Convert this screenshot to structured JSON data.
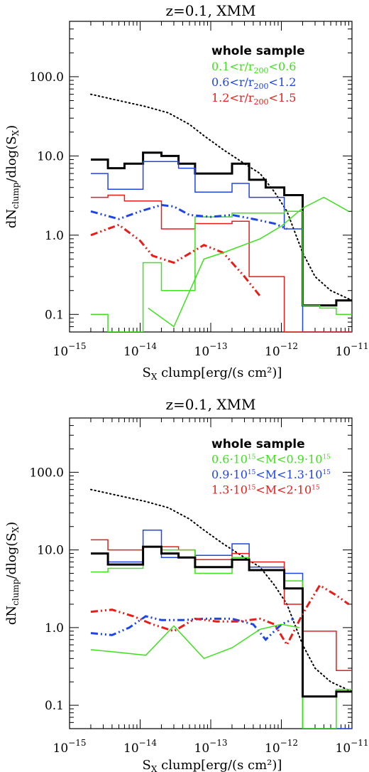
{
  "chart_data": [
    {
      "type": "line",
      "title": "z=0.1, XMM",
      "xlabel": "S_X clump[erg/(s cm²)]",
      "ylabel": "dN_clump/dlog(S_X)",
      "xscale": "log",
      "yscale": "log",
      "xlim": [
        1e-15,
        1e-11
      ],
      "ylim": [
        0.06,
        500
      ],
      "x_ticks": [
        {
          "base": "10",
          "exp": "−15"
        },
        {
          "base": "10",
          "exp": "−14"
        },
        {
          "base": "10",
          "exp": "−13"
        },
        {
          "base": "10",
          "exp": "−12"
        },
        {
          "base": "10",
          "exp": "−11"
        }
      ],
      "y_ticks": [
        {
          "value": 0.1,
          "label": "0.1"
        },
        {
          "value": 1,
          "label": "1.0"
        },
        {
          "value": 10,
          "label": "10.0"
        },
        {
          "value": 100,
          "label": "100.0"
        }
      ],
      "legend_position": "top-right",
      "legend": [
        {
          "label": "whole sample",
          "color": "#000000"
        },
        {
          "label": "0.1<r/r200<0.6",
          "color": "#40e020"
        },
        {
          "label": "0.6<r/r200<1.2",
          "color": "#1f45e6"
        },
        {
          "label": "1.2<r/r200<1.5",
          "color": "#e61d19"
        }
      ],
      "series": [
        {
          "style": "dotted",
          "color": "#000000",
          "x": [
            2e-15,
            5e-15,
            1.2e-14,
            2.5e-14,
            5e-14,
            8e-14,
            1.5e-13,
            3e-13,
            5e-13,
            8e-13,
            1.2e-12,
            2e-12,
            3e-12,
            5e-12,
            1e-11
          ],
          "y": [
            60,
            50,
            42,
            35,
            25,
            18,
            12,
            8,
            6,
            3.5,
            2,
            0.6,
            0.3,
            0.2,
            0.15
          ]
        },
        {
          "style": "step",
          "color": "#000000",
          "width": 3,
          "edges": [
            2e-15,
            3.5e-15,
            6e-15,
            1.1e-14,
            2e-14,
            3.5e-14,
            6e-14,
            1.1e-13,
            2e-13,
            3.5e-13,
            6e-13,
            1.1e-12,
            2e-12,
            3.5e-12,
            6e-12,
            1e-11
          ],
          "y": [
            9,
            7,
            8,
            11,
            10,
            8,
            6,
            6,
            8,
            5,
            4,
            3.2,
            0.13,
            0.13,
            0.15
          ]
        },
        {
          "style": "step",
          "color": "#1f45e6",
          "width": 1.5,
          "edges": [
            2e-15,
            3.5e-15,
            6e-15,
            1.1e-14,
            2e-14,
            3.5e-14,
            6e-14,
            1.1e-13,
            2e-13,
            3.5e-13,
            6e-13,
            1.1e-12,
            2e-12,
            3.5e-12,
            6e-12,
            1e-11
          ],
          "y": [
            6,
            3.8,
            3.8,
            8.5,
            8.5,
            7,
            3.5,
            3.5,
            4.5,
            3,
            3,
            1.2,
            0.06,
            0.06,
            0.06
          ]
        },
        {
          "style": "step",
          "color": "#e61d19",
          "width": 1.5,
          "edges": [
            2e-15,
            3.5e-15,
            6e-15,
            1.1e-14,
            2e-14,
            3.5e-14,
            6e-14,
            1.1e-13,
            2e-13,
            3.5e-13,
            6e-13,
            1.1e-12,
            2e-12,
            3.5e-12,
            6e-12,
            1e-11
          ],
          "y": [
            3,
            3.2,
            2.7,
            2.7,
            1.2,
            1.2,
            1.4,
            1.4,
            1.5,
            0.3,
            0.3,
            0.06,
            0.06,
            0.06,
            0.06
          ]
        },
        {
          "style": "step",
          "color": "#40e020",
          "width": 1.5,
          "edges": [
            2e-15,
            3.5e-15,
            6e-15,
            1.1e-14,
            2e-14,
            3.5e-14,
            6e-14,
            1.1e-13,
            2e-13,
            3.5e-13,
            6e-13,
            1.1e-12,
            2e-12,
            3.5e-12,
            6e-12,
            1e-11
          ],
          "y": [
            0.1,
            0.06,
            0.06,
            0.45,
            0.2,
            0.2,
            1.7,
            1.7,
            1.9,
            1.9,
            1.9,
            2,
            0.13,
            0.12,
            0.1
          ]
        },
        {
          "style": "dashdot",
          "color": "#1f45e6",
          "width": 3,
          "x": [
            2e-15,
            5e-15,
            1e-14,
            2e-14,
            3e-14,
            5e-14,
            1e-13,
            2e-13,
            4e-13,
            8e-13,
            1.2e-12
          ],
          "y": [
            2,
            1.6,
            2,
            2.4,
            2.3,
            1.8,
            1.7,
            1.8,
            1.6,
            1.4,
            1.2
          ]
        },
        {
          "style": "dashdot",
          "color": "#e61d19",
          "width": 3,
          "x": [
            2e-15,
            5e-15,
            1e-14,
            1.5e-14,
            3e-14,
            8e-14,
            1.5e-13,
            3e-13,
            5e-13
          ],
          "y": [
            1,
            1.35,
            0.85,
            0.55,
            0.45,
            0.75,
            0.6,
            0.3,
            0.17
          ]
        },
        {
          "style": "solid",
          "color": "#40e020",
          "width": 1.5,
          "x": [
            1.3e-14,
            3e-14,
            8e-14,
            1.5e-13,
            5e-13,
            1e-12,
            2e-12,
            4e-12,
            9e-12
          ],
          "y": [
            0.12,
            0.07,
            0.5,
            0.6,
            0.9,
            1.3,
            2.2,
            3,
            2
          ]
        }
      ]
    },
    {
      "type": "line",
      "title": "z=0.1, XMM",
      "xlabel": "S_X clump[erg/(s cm²)]",
      "ylabel": "dN_clump/dlog(S_X)",
      "xscale": "log",
      "yscale": "log",
      "xlim": [
        1e-15,
        1e-11
      ],
      "ylim": [
        0.05,
        500
      ],
      "x_ticks": [
        {
          "base": "10",
          "exp": "−15"
        },
        {
          "base": "10",
          "exp": "−14"
        },
        {
          "base": "10",
          "exp": "−13"
        },
        {
          "base": "10",
          "exp": "−12"
        },
        {
          "base": "10",
          "exp": "−11"
        }
      ],
      "y_ticks": [
        {
          "value": 0.1,
          "label": "0.1"
        },
        {
          "value": 1,
          "label": "1.0"
        },
        {
          "value": 10,
          "label": "10.0"
        },
        {
          "value": 100,
          "label": "100.0"
        }
      ],
      "legend_position": "top-right",
      "legend": [
        {
          "label": "whole sample",
          "color": "#000000"
        },
        {
          "label": "0.6·10¹⁵<M<0.9·10¹⁵",
          "color": "#40e020"
        },
        {
          "label": "0.9·10¹⁵<M<1.3·10¹⁵",
          "color": "#1f45e6"
        },
        {
          "label": "1.3·10¹⁵<M<2·10¹⁵",
          "color": "#e61d19"
        }
      ],
      "series": [
        {
          "style": "dotted",
          "color": "#000000",
          "x": [
            2e-15,
            5e-15,
            1.2e-14,
            2.5e-14,
            5e-14,
            8e-14,
            1.5e-13,
            3e-13,
            5e-13,
            8e-13,
            1.2e-12,
            2e-12,
            3e-12,
            5e-12,
            1e-11
          ],
          "y": [
            60,
            50,
            42,
            35,
            25,
            18,
            12,
            8,
            6,
            3.5,
            2,
            0.6,
            0.3,
            0.2,
            0.15
          ]
        },
        {
          "style": "step",
          "color": "#1f45e6",
          "width": 1.5,
          "edges": [
            2e-15,
            3.5e-15,
            6e-15,
            1.1e-14,
            2e-14,
            3.5e-14,
            6e-14,
            1.1e-13,
            2e-13,
            3.5e-13,
            6e-13,
            1.1e-12,
            2e-12,
            3.5e-12,
            6e-12,
            1e-11
          ],
          "y": [
            9,
            7,
            7,
            18,
            8,
            8,
            8.5,
            8.5,
            12,
            6,
            6,
            5,
            0.05,
            0.05,
            0.05
          ]
        },
        {
          "style": "step",
          "color": "#e61d19",
          "width": 1.5,
          "edges": [
            2e-15,
            3.5e-15,
            6e-15,
            1.1e-14,
            2e-14,
            3.5e-14,
            6e-14,
            1.1e-13,
            2e-13,
            3.5e-13,
            6e-13,
            1.1e-12,
            2e-12,
            3.5e-12,
            6e-12,
            1e-11
          ],
          "y": [
            13.5,
            10,
            10,
            11,
            11,
            10,
            7.5,
            7.5,
            9,
            7,
            7,
            2,
            0.9,
            0.9,
            0.28
          ]
        },
        {
          "style": "step",
          "color": "#40e020",
          "width": 1.5,
          "edges": [
            2e-15,
            3.5e-15,
            6e-15,
            1.1e-14,
            2e-14,
            3.5e-14,
            6e-14,
            1.1e-13,
            2e-13,
            3.5e-13,
            6e-13,
            1.1e-12,
            2e-12,
            3.5e-12,
            6e-12,
            1e-11
          ],
          "y": [
            5.2,
            5.8,
            5.8,
            11,
            10,
            10,
            5,
            5,
            8,
            5.5,
            5.5,
            4,
            0.05,
            0.05,
            0.16
          ]
        },
        {
          "style": "step",
          "color": "#000000",
          "width": 3,
          "edges": [
            2e-15,
            3.5e-15,
            6e-15,
            1.1e-14,
            2e-14,
            3.5e-14,
            6e-14,
            1.1e-13,
            2e-13,
            3.5e-13,
            6e-13,
            1.1e-12,
            2e-12,
            3.5e-12,
            6e-12,
            1e-11
          ],
          "y": [
            9,
            6.5,
            6.5,
            11,
            9,
            8,
            6,
            6,
            7.5,
            5.5,
            5.5,
            3.2,
            0.13,
            0.13,
            0.15
          ]
        },
        {
          "style": "dashdot",
          "color": "#1f45e6",
          "width": 3,
          "x": [
            2e-15,
            4e-15,
            7e-15,
            1.2e-14,
            2e-14,
            4e-14,
            8e-14,
            2e-13,
            4e-13,
            6e-13,
            1e-12,
            1.5e-12
          ],
          "y": [
            0.85,
            0.8,
            1,
            1.4,
            1.25,
            1.25,
            1.3,
            1.3,
            1.1,
            0.7,
            1.1,
            1.3
          ]
        },
        {
          "style": "dashdot",
          "color": "#e61d19",
          "width": 3,
          "x": [
            2e-15,
            4e-15,
            8e-15,
            1.5e-14,
            3e-14,
            6e-14,
            1.2e-13,
            2.5e-13,
            5e-13,
            8e-13,
            1.2e-12,
            2e-12,
            3.5e-12,
            6e-12,
            9e-12
          ],
          "y": [
            1.6,
            1.7,
            1.4,
            1.1,
            0.9,
            1.3,
            1.2,
            1.2,
            1.3,
            1.1,
            0.6,
            1.5,
            3.5,
            2.6,
            2
          ]
        },
        {
          "style": "solid",
          "color": "#40e020",
          "width": 1.5,
          "x": [
            2e-15,
            5e-15,
            1.2e-14,
            3e-14,
            8e-14,
            2e-13,
            5e-13,
            1e-12,
            1.8e-12
          ],
          "y": [
            0.52,
            0.48,
            0.44,
            1.05,
            0.4,
            0.55,
            0.95,
            1.1,
            1
          ]
        }
      ]
    }
  ]
}
